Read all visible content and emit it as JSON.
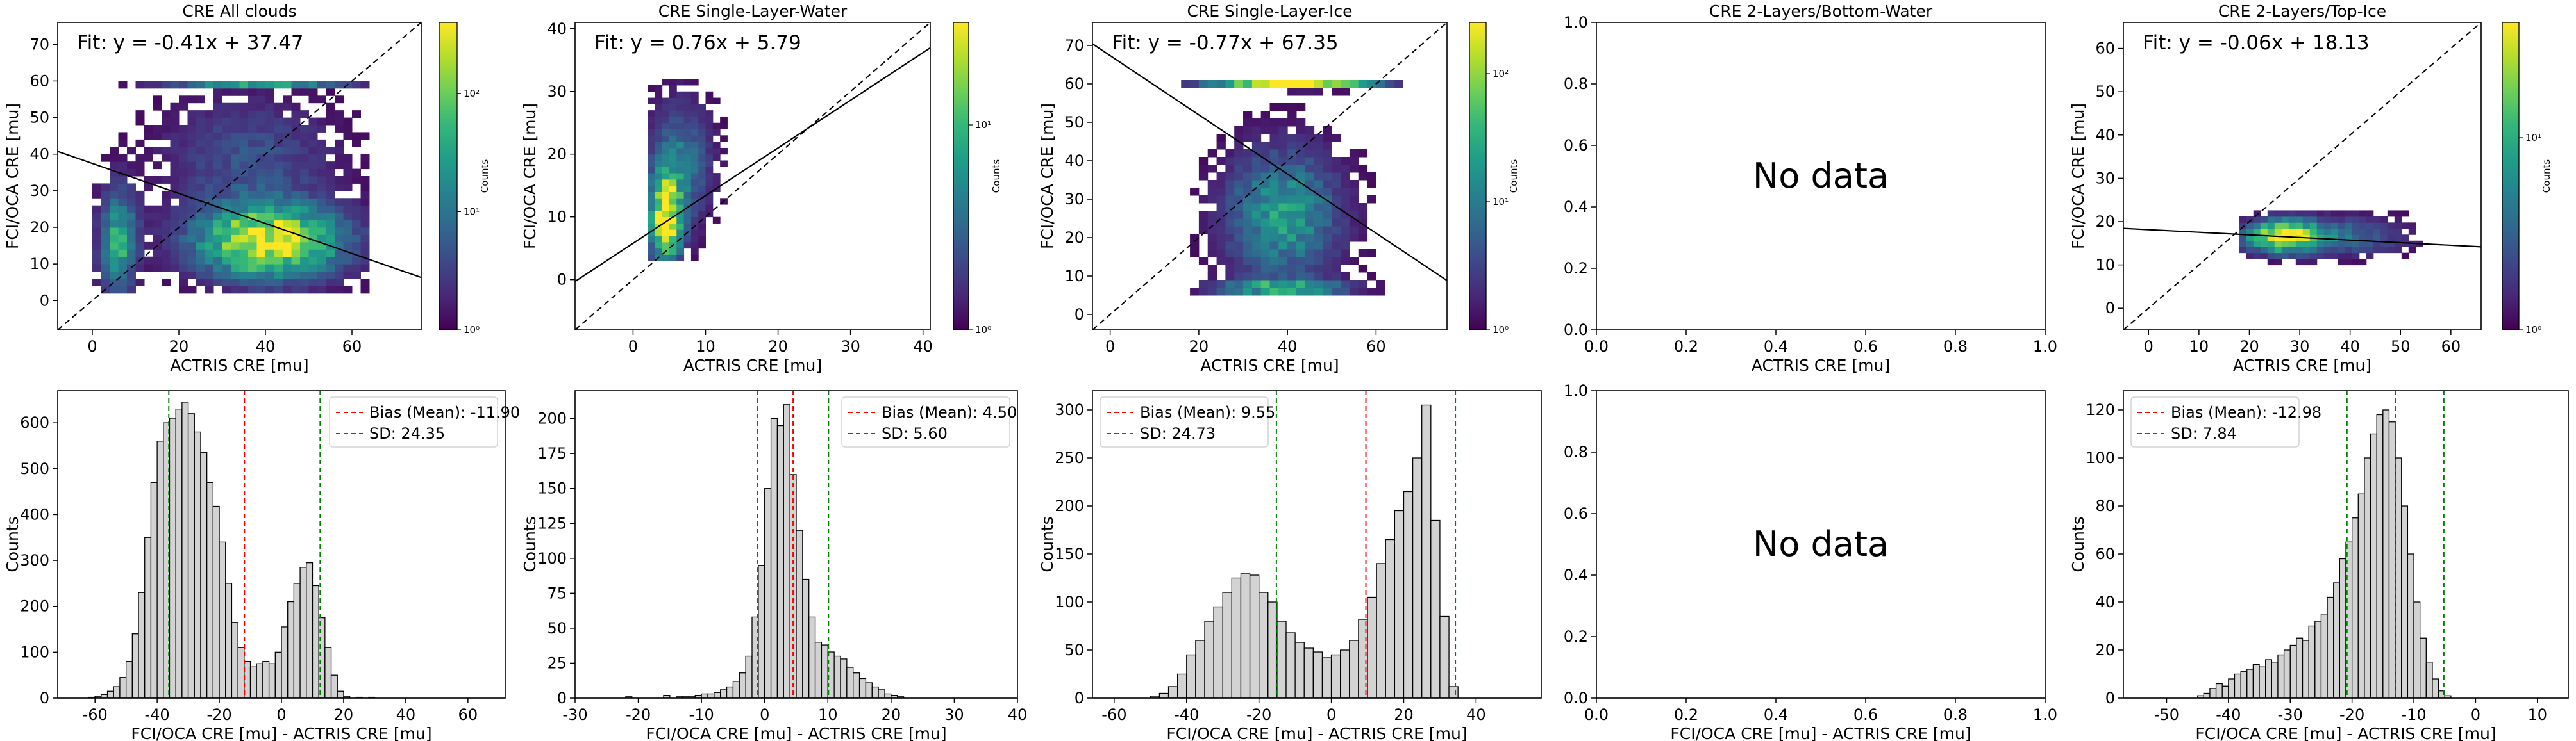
{
  "figure": {
    "background": "#ffffff"
  },
  "colors": {
    "bar_fill": "#d3d3d3",
    "bar_edge": "#000000",
    "bias_line": "#ff0000",
    "sd_line": "#008000",
    "viridis": [
      "#440154",
      "#482878",
      "#3e4989",
      "#31688e",
      "#26828e",
      "#1f9e89",
      "#35b779",
      "#6ece58",
      "#b5de2b",
      "#fde725"
    ]
  },
  "colorbar": {
    "label": "Counts"
  },
  "no_data_text": "No data",
  "chart_data": [
    {
      "type": "heatmap",
      "title": "CRE All clouds",
      "xlabel": "ACTRIS CRE [mu]",
      "ylabel": "FCI/OCA CRE [mu]",
      "xlim": [
        -8,
        76
      ],
      "ylim": [
        -8,
        76
      ],
      "xticks": [
        0,
        20,
        40,
        60
      ],
      "yticks": [
        0,
        10,
        20,
        30,
        40,
        50,
        60,
        70
      ],
      "fit": {
        "slope": -0.41,
        "intercept": 37.47,
        "label": "Fit: y = -0.41x + 37.47"
      },
      "one_to_one": true,
      "colorbar_ticks": [
        "10⁰",
        "10¹",
        "10²"
      ],
      "colorbar_max_exp": 2.6,
      "density": {
        "x_range": [
          0,
          63
        ],
        "y_range": [
          2,
          60
        ],
        "step": 2,
        "clusters": [
          {
            "cx": 40,
            "cy": 15,
            "sx": 12,
            "sy": 7,
            "w": 1.0
          },
          {
            "cx": 38,
            "cy": 59,
            "sx": 14,
            "sy": 0.8,
            "w": 1.2
          },
          {
            "cx": 5,
            "cy": 15,
            "sx": 3,
            "sy": 10,
            "w": 0.6
          },
          {
            "cx": 35,
            "cy": 38,
            "sx": 14,
            "sy": 12,
            "w": 0.25
          }
        ]
      }
    },
    {
      "type": "heatmap",
      "title": "CRE Single-Layer-Water",
      "xlabel": "ACTRIS CRE [mu]",
      "ylabel": "FCI/OCA CRE [mu]",
      "xlim": [
        -8,
        41
      ],
      "ylim": [
        -8,
        41
      ],
      "xticks": [
        0,
        10,
        20,
        30,
        40
      ],
      "yticks": [
        0,
        10,
        20,
        30,
        40
      ],
      "fit": {
        "slope": 0.76,
        "intercept": 5.79,
        "label": "Fit: y = 0.76x + 5.79"
      },
      "one_to_one": true,
      "colorbar_ticks": [
        "10⁰",
        "10¹"
      ],
      "colorbar_max_exp": 1.5,
      "density": {
        "x_range": [
          2,
          22
        ],
        "y_range": [
          3,
          32
        ],
        "step": 1,
        "clusters": [
          {
            "cx": 4,
            "cy": 9,
            "sx": 1.5,
            "sy": 5,
            "w": 1.0
          },
          {
            "cx": 6,
            "cy": 18,
            "sx": 3,
            "sy": 7,
            "w": 0.4
          }
        ]
      }
    },
    {
      "type": "heatmap",
      "title": "CRE Single-Layer-Ice",
      "xlabel": "ACTRIS CRE [mu]",
      "ylabel": "FCI/OCA CRE [mu]",
      "xlim": [
        -4,
        76
      ],
      "ylim": [
        -4,
        76
      ],
      "xticks": [
        0,
        20,
        40,
        60
      ],
      "yticks": [
        0,
        10,
        20,
        30,
        40,
        50,
        60,
        70
      ],
      "fit": {
        "slope": -0.77,
        "intercept": 67.35,
        "label": "Fit: y = -0.77x + 67.35"
      },
      "one_to_one": true,
      "colorbar_ticks": [
        "10⁰",
        "10¹",
        "10²"
      ],
      "colorbar_max_exp": 2.4,
      "density": {
        "x_range": [
          16,
          66
        ],
        "y_range": [
          5,
          60
        ],
        "step": 2,
        "clusters": [
          {
            "cx": 40,
            "cy": 59,
            "sx": 12,
            "sy": 0.8,
            "w": 1.2
          },
          {
            "cx": 38,
            "cy": 25,
            "sx": 9,
            "sy": 12,
            "w": 0.55
          },
          {
            "cx": 38,
            "cy": 6,
            "sx": 10,
            "sy": 1.5,
            "w": 0.6
          }
        ]
      }
    },
    {
      "type": "empty",
      "title": "CRE 2-Layers/Bottom-Water",
      "xlabel": "ACTRIS CRE [mu]",
      "ylabel": "",
      "xlim": [
        0,
        1
      ],
      "ylim": [
        0,
        1
      ],
      "xticks": [
        0.0,
        0.2,
        0.4,
        0.6,
        0.8,
        1.0
      ],
      "yticks": [
        0.0,
        0.2,
        0.4,
        0.6,
        0.8,
        1.0
      ],
      "message": "No data"
    },
    {
      "type": "heatmap",
      "title": "CRE 2-Layers/Top-Ice",
      "xlabel": "ACTRIS CRE [mu]",
      "ylabel": "FCI/OCA CRE [mu]",
      "xlim": [
        -5,
        66
      ],
      "ylim": [
        -5,
        66
      ],
      "xticks": [
        0,
        10,
        20,
        30,
        40,
        50,
        60
      ],
      "yticks": [
        0,
        10,
        20,
        30,
        40,
        50,
        60
      ],
      "fit": {
        "slope": -0.06,
        "intercept": 18.13,
        "label": "Fit: y = -0.06x + 18.13"
      },
      "one_to_one": true,
      "colorbar_ticks": [
        "10⁰",
        "10¹"
      ],
      "colorbar_max_exp": 1.6,
      "density": {
        "x_range": [
          18,
          54
        ],
        "y_range": [
          10,
          22
        ],
        "step": 1.4,
        "clusters": [
          {
            "cx": 26,
            "cy": 16,
            "sx": 5,
            "sy": 2.5,
            "w": 1.0
          },
          {
            "cx": 38,
            "cy": 16,
            "sx": 9,
            "sy": 3,
            "w": 0.35
          }
        ]
      }
    },
    {
      "type": "histogram",
      "title": "",
      "xlabel": "FCI/OCA CRE [mu] - ACTRIS CRE [mu]",
      "ylabel": "Counts",
      "xlim": [
        -72,
        72
      ],
      "ylim": [
        0,
        670
      ],
      "xticks": [
        -60,
        -40,
        -20,
        0,
        20,
        40,
        60
      ],
      "yticks": [
        0,
        100,
        200,
        300,
        400,
        500,
        600
      ],
      "bin_start": -62,
      "bin_width": 2,
      "counts": [
        2,
        4,
        8,
        15,
        25,
        45,
        80,
        140,
        230,
        350,
        470,
        560,
        600,
        610,
        630,
        645,
        620,
        580,
        535,
        470,
        418,
        340,
        250,
        165,
        110,
        80,
        68,
        75,
        80,
        75,
        100,
        155,
        210,
        250,
        285,
        295,
        245,
        175,
        110,
        50,
        15,
        4,
        0,
        2,
        0,
        2,
        0,
        0
      ],
      "mean": -11.9,
      "sd": 24.35,
      "legend": [
        "Bias (Mean): -11.90",
        "SD: 24.35"
      ]
    },
    {
      "type": "histogram",
      "title": "",
      "xlabel": "FCI/OCA CRE [mu] - ACTRIS CRE [mu]",
      "ylabel": "Counts",
      "xlim": [
        -30,
        40
      ],
      "ylim": [
        0,
        220
      ],
      "xticks": [
        -30,
        -20,
        -10,
        0,
        10,
        20,
        30,
        40
      ],
      "yticks": [
        0,
        25,
        50,
        75,
        100,
        125,
        150,
        175,
        200
      ],
      "bin_start": -22,
      "bin_width": 1,
      "counts": [
        1,
        0,
        0,
        0,
        0,
        0,
        2,
        0,
        1,
        1,
        1,
        2,
        3,
        3,
        4,
        6,
        8,
        12,
        18,
        30,
        58,
        95,
        150,
        200,
        195,
        210,
        160,
        120,
        85,
        58,
        40,
        38,
        33,
        30,
        28,
        22,
        18,
        14,
        11,
        8,
        6,
        3,
        2,
        1
      ],
      "mean": 4.5,
      "sd": 5.6,
      "legend": [
        "Bias (Mean): 4.50",
        "SD: 5.60"
      ]
    },
    {
      "type": "histogram",
      "title": "",
      "xlabel": "FCI/OCA CRE [mu] - ACTRIS CRE [mu]",
      "ylabel": "Counts",
      "xlim": [
        -66,
        58
      ],
      "ylim": [
        0,
        320
      ],
      "xticks": [
        -60,
        -40,
        -20,
        0,
        20,
        40
      ],
      "yticks": [
        0,
        50,
        100,
        150,
        200,
        250,
        300
      ],
      "bin_start": -50,
      "bin_width": 2.5,
      "counts": [
        2,
        5,
        12,
        25,
        45,
        60,
        80,
        95,
        110,
        125,
        130,
        128,
        110,
        100,
        80,
        68,
        58,
        52,
        48,
        42,
        45,
        50,
        60,
        82,
        105,
        140,
        165,
        195,
        215,
        250,
        305,
        185,
        85,
        12
      ],
      "mean": 9.55,
      "sd": 24.73,
      "legend": [
        "Bias (Mean): 9.55",
        "SD: 24.73"
      ]
    },
    {
      "type": "empty",
      "title": "",
      "xlabel": "FCI/OCA CRE [mu] - ACTRIS CRE [mu]",
      "ylabel": "",
      "xlim": [
        0,
        1
      ],
      "ylim": [
        0,
        1
      ],
      "xticks": [
        0.0,
        0.2,
        0.4,
        0.6,
        0.8,
        1.0
      ],
      "yticks": [
        0.0,
        0.2,
        0.4,
        0.6,
        0.8,
        1.0
      ],
      "message": "No data"
    },
    {
      "type": "histogram",
      "title": "",
      "xlabel": "FCI/OCA CRE [mu] - ACTRIS CRE [mu]",
      "ylabel": "Counts",
      "xlim": [
        -57,
        15
      ],
      "ylim": [
        0,
        128
      ],
      "xticks": [
        -50,
        -40,
        -30,
        -20,
        -10,
        0,
        10
      ],
      "yticks": [
        0,
        20,
        40,
        60,
        80,
        100,
        120
      ],
      "bin_start": -45,
      "bin_width": 1,
      "counts": [
        1,
        2,
        4,
        6,
        5,
        8,
        10,
        11,
        12,
        14,
        13,
        16,
        15,
        18,
        20,
        22,
        25,
        24,
        30,
        32,
        35,
        42,
        48,
        58,
        65,
        75,
        85,
        100,
        110,
        118,
        120,
        115,
        100,
        80,
        60,
        40,
        25,
        15,
        8,
        3,
        1
      ],
      "mean": -12.98,
      "sd": 7.84,
      "legend": [
        "Bias (Mean): -12.98",
        "SD: 7.84"
      ]
    }
  ]
}
